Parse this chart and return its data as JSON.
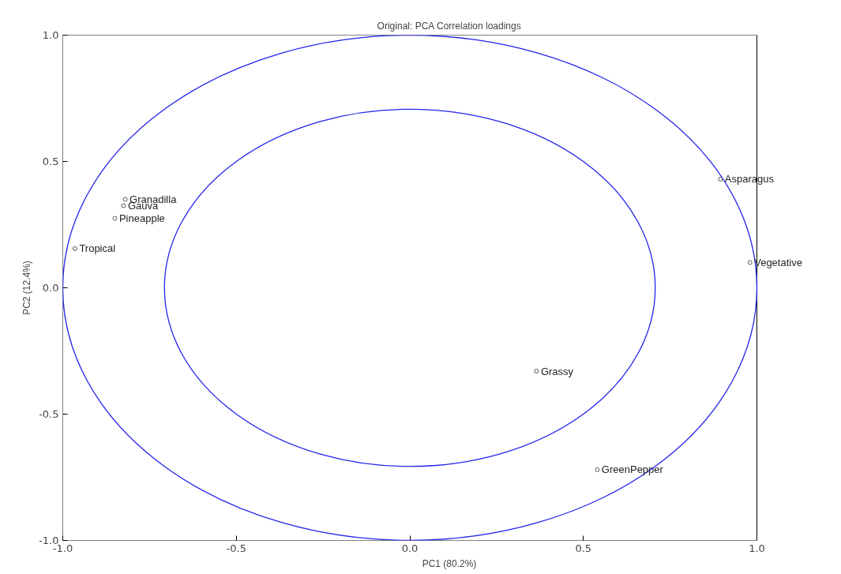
{
  "chart_data": {
    "type": "scatter",
    "title": "Original: PCA Correlation loadings",
    "xlabel": "PC1 (80.2%)",
    "ylabel": "PC2 (12.4%)",
    "xlim": [
      -1.0,
      1.0
    ],
    "ylim": [
      -1.0,
      1.0
    ],
    "xticks": [
      {
        "value": -1.0,
        "label": "-1.0"
      },
      {
        "value": -0.5,
        "label": "-0.5"
      },
      {
        "value": 0.0,
        "label": "0.0"
      },
      {
        "value": 0.5,
        "label": "0.5"
      },
      {
        "value": 1.0,
        "label": "1.0"
      }
    ],
    "yticks": [
      {
        "value": -1.0,
        "label": "-1.0"
      },
      {
        "value": -0.5,
        "label": "-0.5"
      },
      {
        "value": 0.0,
        "label": "0.0"
      },
      {
        "value": 0.5,
        "label": "0.5"
      },
      {
        "value": 1.0,
        "label": "1.0"
      }
    ],
    "grid": false,
    "series": [
      {
        "marker": "circle",
        "color": "#555555",
        "x": [
          0.895,
          0.98,
          0.365,
          0.54,
          -0.965,
          -0.82,
          -0.825,
          -0.85
        ],
        "values": [
          0.43,
          0.1,
          -0.33,
          -0.72,
          0.155,
          0.35,
          0.325,
          0.275
        ]
      }
    ],
    "annotations": [
      {
        "text": "Asparagus",
        "x": 0.895,
        "y": 0.43
      },
      {
        "text": "Vegetative",
        "x": 0.98,
        "y": 0.1
      },
      {
        "text": "Grassy",
        "x": 0.365,
        "y": -0.33
      },
      {
        "text": "GreenPepper",
        "x": 0.54,
        "y": -0.72
      },
      {
        "text": "Tropical",
        "x": -0.965,
        "y": 0.155
      },
      {
        "text": "Granadilla",
        "x": -0.82,
        "y": 0.35
      },
      {
        "text": "Gauva",
        "x": -0.825,
        "y": 0.325
      },
      {
        "text": "Pineapple",
        "x": -0.85,
        "y": 0.275
      }
    ]
  }
}
